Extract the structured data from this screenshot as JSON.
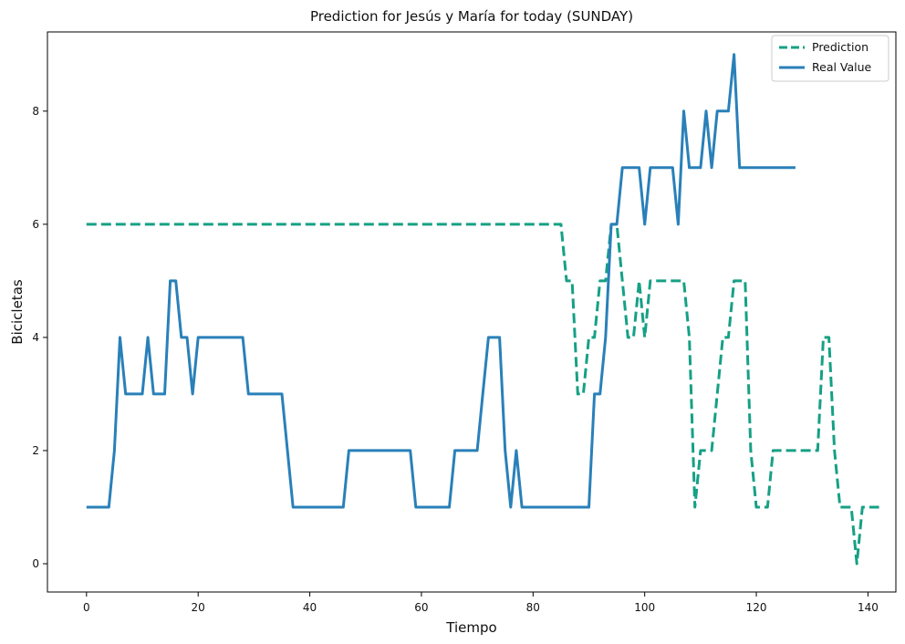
{
  "chart_data": {
    "type": "line",
    "title": "Prediction for Jesús y María for today (SUNDAY)",
    "xlabel": "Tiempo",
    "ylabel": "Bicicletas",
    "xlim": [
      -7,
      145
    ],
    "ylim": [
      -0.5,
      9.4
    ],
    "xticks": [
      0,
      20,
      40,
      60,
      80,
      100,
      120,
      140
    ],
    "yticks": [
      0,
      2,
      4,
      6,
      8
    ],
    "grid": false,
    "legend_position": "top-right",
    "series": [
      {
        "name": "Prediction",
        "color": "#16a085",
        "style": "dashed",
        "points": [
          [
            0,
            6
          ],
          [
            85,
            6
          ],
          [
            86,
            5
          ],
          [
            87,
            5
          ],
          [
            88,
            3
          ],
          [
            89,
            3
          ],
          [
            90,
            4
          ],
          [
            91,
            4
          ],
          [
            92,
            5
          ],
          [
            93,
            5
          ],
          [
            94,
            6
          ],
          [
            95,
            6
          ],
          [
            96,
            5
          ],
          [
            97,
            4
          ],
          [
            98,
            4
          ],
          [
            99,
            5
          ],
          [
            100,
            4
          ],
          [
            101,
            5
          ],
          [
            102,
            5
          ],
          [
            103,
            5
          ],
          [
            104,
            5
          ],
          [
            105,
            5
          ],
          [
            106,
            5
          ],
          [
            107,
            5
          ],
          [
            108,
            4
          ],
          [
            109,
            1
          ],
          [
            110,
            2
          ],
          [
            111,
            2
          ],
          [
            112,
            2
          ],
          [
            113,
            3
          ],
          [
            114,
            4
          ],
          [
            115,
            4
          ],
          [
            116,
            5
          ],
          [
            117,
            5
          ],
          [
            118,
            5
          ],
          [
            119,
            2
          ],
          [
            120,
            1
          ],
          [
            121,
            1
          ],
          [
            122,
            1
          ],
          [
            123,
            2
          ],
          [
            124,
            2
          ],
          [
            125,
            2
          ],
          [
            126,
            2
          ],
          [
            127,
            2
          ],
          [
            128,
            2
          ],
          [
            129,
            2
          ],
          [
            130,
            2
          ],
          [
            131,
            2
          ],
          [
            132,
            4
          ],
          [
            133,
            4
          ],
          [
            134,
            2
          ],
          [
            135,
            1
          ],
          [
            136,
            1
          ],
          [
            137,
            1
          ],
          [
            138,
            0
          ],
          [
            139,
            1
          ],
          [
            140,
            1
          ],
          [
            141,
            1
          ],
          [
            142,
            1
          ]
        ]
      },
      {
        "name": "Real Value",
        "color": "#2980b9",
        "style": "solid",
        "points": [
          [
            0,
            1
          ],
          [
            4,
            1
          ],
          [
            5,
            2
          ],
          [
            6,
            4
          ],
          [
            7,
            3
          ],
          [
            8,
            3
          ],
          [
            9,
            3
          ],
          [
            10,
            3
          ],
          [
            11,
            4
          ],
          [
            12,
            3
          ],
          [
            13,
            3
          ],
          [
            14,
            3
          ],
          [
            15,
            5
          ],
          [
            16,
            5
          ],
          [
            17,
            4
          ],
          [
            18,
            4
          ],
          [
            19,
            3
          ],
          [
            20,
            4
          ],
          [
            21,
            4
          ],
          [
            22,
            4
          ],
          [
            23,
            4
          ],
          [
            24,
            4
          ],
          [
            25,
            4
          ],
          [
            26,
            4
          ],
          [
            27,
            4
          ],
          [
            28,
            4
          ],
          [
            29,
            3
          ],
          [
            30,
            3
          ],
          [
            31,
            3
          ],
          [
            32,
            3
          ],
          [
            33,
            3
          ],
          [
            34,
            3
          ],
          [
            35,
            3
          ],
          [
            36,
            2
          ],
          [
            37,
            1
          ],
          [
            38,
            1
          ],
          [
            39,
            1
          ],
          [
            40,
            1
          ],
          [
            41,
            1
          ],
          [
            42,
            1
          ],
          [
            43,
            1
          ],
          [
            44,
            1
          ],
          [
            45,
            1
          ],
          [
            46,
            1
          ],
          [
            47,
            2
          ],
          [
            48,
            2
          ],
          [
            49,
            2
          ],
          [
            50,
            2
          ],
          [
            51,
            2
          ],
          [
            52,
            2
          ],
          [
            53,
            2
          ],
          [
            54,
            2
          ],
          [
            55,
            2
          ],
          [
            56,
            2
          ],
          [
            57,
            2
          ],
          [
            58,
            2
          ],
          [
            59,
            1
          ],
          [
            60,
            1
          ],
          [
            61,
            1
          ],
          [
            62,
            1
          ],
          [
            63,
            1
          ],
          [
            64,
            1
          ],
          [
            65,
            1
          ],
          [
            66,
            2
          ],
          [
            67,
            2
          ],
          [
            68,
            2
          ],
          [
            69,
            2
          ],
          [
            70,
            2
          ],
          [
            71,
            3
          ],
          [
            72,
            4
          ],
          [
            73,
            4
          ],
          [
            74,
            4
          ],
          [
            75,
            2
          ],
          [
            76,
            1
          ],
          [
            77,
            2
          ],
          [
            78,
            1
          ],
          [
            79,
            1
          ],
          [
            80,
            1
          ],
          [
            81,
            1
          ],
          [
            82,
            1
          ],
          [
            83,
            1
          ],
          [
            84,
            1
          ],
          [
            85,
            1
          ],
          [
            86,
            1
          ],
          [
            87,
            1
          ],
          [
            88,
            1
          ],
          [
            89,
            1
          ],
          [
            90,
            1
          ],
          [
            91,
            3
          ],
          [
            92,
            3
          ],
          [
            93,
            4
          ],
          [
            94,
            6
          ],
          [
            95,
            6
          ],
          [
            96,
            7
          ],
          [
            97,
            7
          ],
          [
            98,
            7
          ],
          [
            99,
            7
          ],
          [
            100,
            6
          ],
          [
            101,
            7
          ],
          [
            102,
            7
          ],
          [
            103,
            7
          ],
          [
            104,
            7
          ],
          [
            105,
            7
          ],
          [
            106,
            6
          ],
          [
            107,
            8
          ],
          [
            108,
            7
          ],
          [
            109,
            7
          ],
          [
            110,
            7
          ],
          [
            111,
            8
          ],
          [
            112,
            7
          ],
          [
            113,
            8
          ],
          [
            114,
            8
          ],
          [
            115,
            8
          ],
          [
            116,
            9
          ],
          [
            117,
            7
          ],
          [
            118,
            7
          ],
          [
            119,
            7
          ],
          [
            120,
            7
          ],
          [
            121,
            7
          ],
          [
            122,
            7
          ],
          [
            123,
            7
          ],
          [
            124,
            7
          ],
          [
            125,
            7
          ],
          [
            126,
            7
          ],
          [
            127,
            7
          ]
        ]
      }
    ]
  }
}
